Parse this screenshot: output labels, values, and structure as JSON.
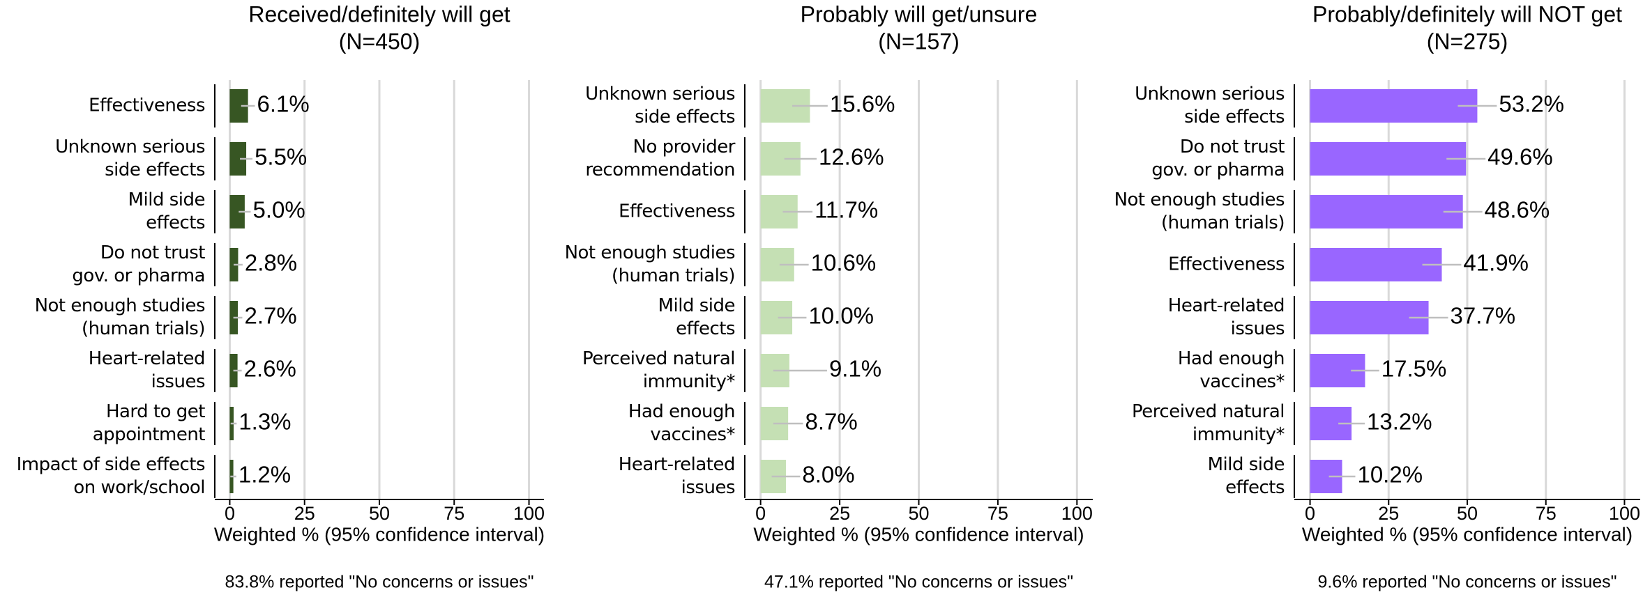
{
  "chart_data": [
    {
      "type": "hbar",
      "title": "Received/definitely will get",
      "subtitle": "(N=450)",
      "categories": [
        "Effectiveness",
        "Unknown serious\nside effects",
        "Mild side\neffects",
        "Do not trust\ngov. or pharma",
        "Not enough studies\n(human trials)",
        "Heart-related\nissues",
        "Hard to get\nappointment",
        "Impact of side effects\non work/school"
      ],
      "values": [
        6.1,
        5.5,
        5.0,
        2.8,
        2.7,
        2.6,
        1.3,
        1.2
      ],
      "value_labels": [
        "6.1%",
        "5.5%",
        "5.0%",
        "2.8%",
        "2.7%",
        "2.6%",
        "1.3%",
        "1.2%"
      ],
      "ci_low": [
        3.8,
        3.4,
        3.0,
        1.3,
        1.2,
        1.2,
        0.3,
        0.2
      ],
      "ci_high": [
        8.4,
        7.6,
        7.0,
        4.3,
        4.2,
        4.0,
        2.3,
        2.2
      ],
      "color": "#375623",
      "xlabel": "Weighted % (95% confidence interval)",
      "xlim": [
        -5,
        105
      ],
      "xticks": [
        0,
        25,
        50,
        75,
        100
      ],
      "grid": true,
      "note": "83.8% reported \"No concerns or issues\""
    },
    {
      "type": "hbar",
      "title": "Probably will get/unsure",
      "subtitle": "(N=157)",
      "categories": [
        "Unknown serious\nside effects",
        "No provider\nrecommendation",
        "Effectiveness",
        "Not enough studies\n(human trials)",
        "Mild side\neffects",
        "Perceived natural\nimmunity*",
        "Had enough\nvaccines*",
        "Heart-related\nissues"
      ],
      "values": [
        15.6,
        12.6,
        11.7,
        10.6,
        10.0,
        9.1,
        8.7,
        8.0
      ],
      "value_labels": [
        "15.6%",
        "12.6%",
        "11.7%",
        "10.6%",
        "10.0%",
        "9.1%",
        "8.7%",
        "8.0%"
      ],
      "ci_low": [
        10.0,
        7.5,
        7.0,
        6.0,
        5.5,
        4.0,
        4.0,
        3.5
      ],
      "ci_high": [
        21.2,
        17.7,
        16.4,
        15.2,
        14.5,
        21.0,
        13.4,
        12.5
      ],
      "color": "#c5e0b4",
      "xlabel": "Weighted % (95% confidence interval)",
      "xlim": [
        -5,
        105
      ],
      "xticks": [
        0,
        25,
        50,
        75,
        100
      ],
      "grid": true,
      "note": "47.1% reported \"No concerns or issues\""
    },
    {
      "type": "hbar",
      "title": "Probably/definitely will NOT get",
      "subtitle": "(N=275)",
      "categories": [
        "Unknown serious\nside effects",
        "Do not trust\ngov. or pharma",
        "Not enough studies\n(human trials)",
        "Effectiveness",
        "Heart-related\nissues",
        "Had enough\nvaccines*",
        "Perceived natural\nimmunity*",
        "Mild side\neffects"
      ],
      "values": [
        53.2,
        49.6,
        48.6,
        41.9,
        37.7,
        17.5,
        13.2,
        10.2
      ],
      "value_labels": [
        "53.2%",
        "49.6%",
        "48.6%",
        "41.9%",
        "37.7%",
        "17.5%",
        "13.2%",
        "10.2%"
      ],
      "ci_low": [
        47.0,
        43.4,
        42.4,
        35.7,
        31.5,
        13.0,
        9.0,
        6.0
      ],
      "ci_high": [
        59.4,
        55.8,
        54.8,
        48.1,
        43.9,
        22.0,
        17.4,
        14.4
      ],
      "color": "#9966ff",
      "xlabel": "Weighted % (95% confidence interval)",
      "xlim": [
        -5,
        105
      ],
      "xticks": [
        0,
        25,
        50,
        75,
        100
      ],
      "grid": true,
      "note": "9.6% reported \"No concerns or issues\""
    }
  ]
}
